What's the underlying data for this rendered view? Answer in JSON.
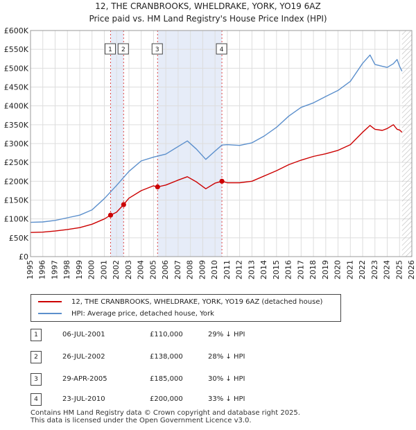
{
  "header": {
    "title_line1": "12, THE CRANBROOKS, WHELDRAKE, YORK, YO19 6AZ",
    "title_line2": "Price paid vs. HM Land Registry's House Price Index (HPI)"
  },
  "legend": {
    "items": [
      {
        "label": "12, THE CRANBROOKS, WHELDRAKE, YORK, YO19 6AZ (detached house)",
        "color": "#cc0000"
      },
      {
        "label": "HPI: Average price, detached house, York",
        "color": "#5b8fcc"
      }
    ]
  },
  "sales": [
    {
      "num": "1",
      "date": "06-JUL-2001",
      "price": "£110,000",
      "hpi": "29% ↓ HPI"
    },
    {
      "num": "2",
      "date": "26-JUL-2002",
      "price": "£138,000",
      "hpi": "28% ↓ HPI"
    },
    {
      "num": "3",
      "date": "29-APR-2005",
      "price": "£185,000",
      "hpi": "30% ↓ HPI"
    },
    {
      "num": "4",
      "date": "23-JUL-2010",
      "price": "£200,000",
      "hpi": "33% ↓ HPI"
    }
  ],
  "footer": {
    "line1": "Contains HM Land Registry data © Crown copyright and database right 2025.",
    "line2": "This data is licensed under the Open Government Licence v3.0."
  },
  "chart_data": {
    "type": "line",
    "title": "Price paid vs. HM Land Registry's House Price Index (HPI)",
    "xlabel": "",
    "ylabel": "",
    "xlim": [
      1995,
      2026
    ],
    "ylim": [
      0,
      600000
    ],
    "yticks": [
      {
        "value": 0,
        "label": "£0"
      },
      {
        "value": 50000,
        "label": "£50K"
      },
      {
        "value": 100000,
        "label": "£100K"
      },
      {
        "value": 150000,
        "label": "£150K"
      },
      {
        "value": 200000,
        "label": "£200K"
      },
      {
        "value": 250000,
        "label": "£250K"
      },
      {
        "value": 300000,
        "label": "£300K"
      },
      {
        "value": 350000,
        "label": "£350K"
      },
      {
        "value": 400000,
        "label": "£400K"
      },
      {
        "value": 450000,
        "label": "£450K"
      },
      {
        "value": 500000,
        "label": "£500K"
      },
      {
        "value": 550000,
        "label": "£550K"
      },
      {
        "value": 600000,
        "label": "£600K"
      }
    ],
    "xticks": [
      "1995",
      "1996",
      "1997",
      "1998",
      "1999",
      "2000",
      "2001",
      "2002",
      "2003",
      "2004",
      "2005",
      "2006",
      "2007",
      "2008",
      "2009",
      "2010",
      "2011",
      "2012",
      "2013",
      "2014",
      "2015",
      "2016",
      "2017",
      "2018",
      "2019",
      "2020",
      "2021",
      "2022",
      "2023",
      "2024",
      "2025",
      "2026"
    ],
    "grid": true,
    "shaded_periods": [
      [
        2001.51,
        2002.57
      ],
      [
        2005.33,
        2010.56
      ]
    ],
    "hatched_after": 2025.2,
    "sale_markers": [
      {
        "label": "1",
        "x": 2001.51,
        "y": 110000
      },
      {
        "label": "2",
        "x": 2002.57,
        "y": 138000
      },
      {
        "label": "3",
        "x": 2005.33,
        "y": 185000
      },
      {
        "label": "4",
        "x": 2010.56,
        "y": 200000
      }
    ],
    "series": [
      {
        "name": "HPI: Average price, detached house, York",
        "color": "#5b8fcc",
        "x": [
          1995,
          1996,
          1997,
          1998,
          1999,
          2000,
          2001,
          2002,
          2003,
          2004,
          2005,
          2006,
          2007,
          2007.75,
          2008.5,
          2009.25,
          2010,
          2010.56,
          2011,
          2012,
          2013,
          2014,
          2015,
          2016,
          2017,
          2018,
          2019,
          2020,
          2021,
          2022,
          2022.6,
          2023,
          2023.6,
          2024,
          2024.5,
          2024.8,
          2025,
          2025.2
        ],
        "values": [
          91000,
          92000,
          96000,
          103000,
          110000,
          124000,
          154000,
          189000,
          226000,
          254000,
          264000,
          272000,
          292000,
          307000,
          285000,
          258000,
          280000,
          296000,
          297000,
          295000,
          302000,
          320000,
          343000,
          373000,
          396000,
          408000,
          425000,
          441000,
          465000,
          513000,
          535000,
          510000,
          505000,
          502000,
          512000,
          523000,
          505000,
          492000
        ]
      },
      {
        "name": "12, THE CRANBROOKS, WHELDRAKE, YORK, YO19 6AZ (detached house)",
        "color": "#cc0000",
        "x": [
          1995,
          1996,
          1997,
          1998,
          1999,
          2000,
          2001,
          2001.51,
          2002,
          2002.57,
          2003,
          2004,
          2005,
          2005.33,
          2006,
          2007,
          2007.75,
          2008.5,
          2009.25,
          2010,
          2010.56,
          2011,
          2012,
          2013,
          2014,
          2015,
          2016,
          2017,
          2018,
          2019,
          2020,
          2021,
          2022,
          2022.6,
          2023,
          2023.6,
          2024,
          2024.5,
          2024.8,
          2025,
          2025.2
        ],
        "values": [
          64000,
          65000,
          68000,
          72000,
          77000,
          86000,
          100000,
          110000,
          118000,
          138000,
          155000,
          175000,
          188000,
          185000,
          190000,
          203000,
          212000,
          198000,
          180000,
          195000,
          200000,
          196000,
          196000,
          200000,
          214000,
          228000,
          244000,
          256000,
          266000,
          273000,
          282000,
          297000,
          330000,
          348000,
          338000,
          335000,
          340000,
          350000,
          338000,
          336000,
          330000
        ]
      }
    ]
  }
}
